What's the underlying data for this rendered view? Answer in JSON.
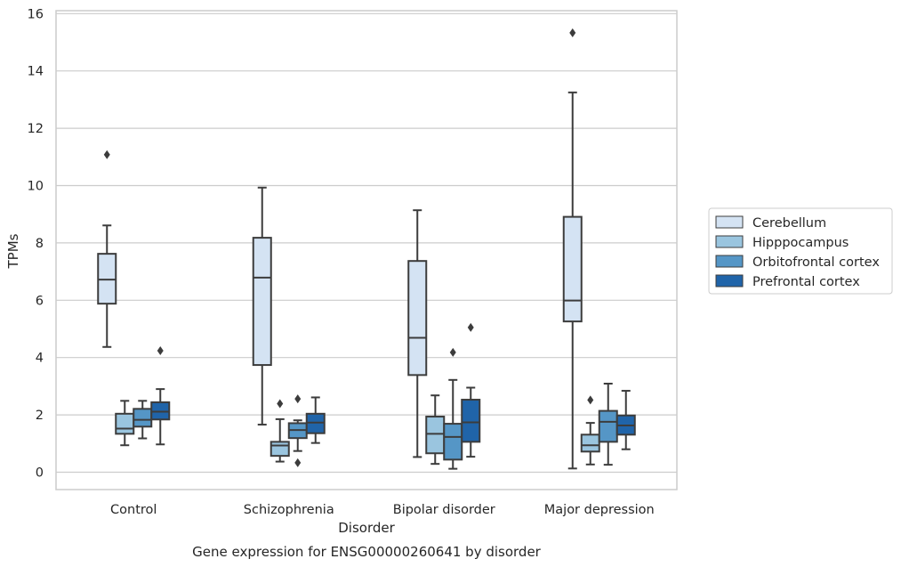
{
  "chart_data": {
    "type": "box",
    "title": "Gene expression for ENSG00000260641 by disorder",
    "xlabel": "Disorder",
    "ylabel": "TPMs",
    "ylim": [
      -0.6,
      16.1
    ],
    "yticks": [
      0,
      2,
      4,
      6,
      8,
      10,
      12,
      14,
      16
    ],
    "grid": "horizontal",
    "legend_position": "right",
    "categories": [
      "Control",
      "Schizophrenia",
      "Bipolar disorder",
      "Major depression"
    ],
    "series": [
      {
        "name": "Cerebellum",
        "color": "#d4e3f3",
        "boxes": [
          {
            "whislo": 4.37,
            "q1": 5.88,
            "med": 6.72,
            "q3": 7.62,
            "whishi": 8.61,
            "fliers": [
              11.08
            ]
          },
          {
            "whislo": 1.66,
            "q1": 3.74,
            "med": 6.79,
            "q3": 8.18,
            "whishi": 9.93,
            "fliers": []
          },
          {
            "whislo": 0.53,
            "q1": 3.39,
            "med": 4.69,
            "q3": 7.37,
            "whishi": 9.14,
            "fliers": []
          },
          {
            "whislo": 0.13,
            "q1": 5.26,
            "med": 5.99,
            "q3": 8.91,
            "whishi": 13.25,
            "fliers": [
              15.33
            ]
          }
        ]
      },
      {
        "name": "Hipppocampus",
        "color": "#9ac5df",
        "boxes": [
          {
            "whislo": 0.94,
            "q1": 1.34,
            "med": 1.52,
            "q3": 2.04,
            "whishi": 2.49,
            "fliers": []
          },
          {
            "whislo": 0.37,
            "q1": 0.57,
            "med": 0.93,
            "q3": 1.06,
            "whishi": 1.85,
            "fliers": [
              2.39
            ]
          },
          {
            "whislo": 0.29,
            "q1": 0.66,
            "med": 1.34,
            "q3": 1.94,
            "whishi": 2.68,
            "fliers": []
          },
          {
            "whislo": 0.27,
            "q1": 0.72,
            "med": 0.94,
            "q3": 1.31,
            "whishi": 1.72,
            "fliers": [
              2.52
            ]
          }
        ]
      },
      {
        "name": "Orbitofrontal cortex",
        "color": "#5596c6",
        "boxes": [
          {
            "whislo": 1.18,
            "q1": 1.59,
            "med": 1.83,
            "q3": 2.21,
            "whishi": 2.49,
            "fliers": []
          },
          {
            "whislo": 0.74,
            "q1": 1.19,
            "med": 1.47,
            "q3": 1.71,
            "whishi": 1.81,
            "fliers": [
              2.56,
              0.33
            ]
          },
          {
            "whislo": 0.12,
            "q1": 0.44,
            "med": 1.23,
            "q3": 1.69,
            "whishi": 3.22,
            "fliers": [
              4.18
            ]
          },
          {
            "whislo": 0.26,
            "q1": 1.06,
            "med": 1.76,
            "q3": 2.14,
            "whishi": 3.09,
            "fliers": []
          }
        ]
      },
      {
        "name": "Prefrontal cortex",
        "color": "#2064a9",
        "boxes": [
          {
            "whislo": 0.97,
            "q1": 1.84,
            "med": 2.11,
            "q3": 2.44,
            "whishi": 2.9,
            "fliers": [
              4.24
            ]
          },
          {
            "whislo": 1.02,
            "q1": 1.36,
            "med": 1.73,
            "q3": 2.04,
            "whishi": 2.61,
            "fliers": []
          },
          {
            "whislo": 0.54,
            "q1": 1.06,
            "med": 1.74,
            "q3": 2.53,
            "whishi": 2.95,
            "fliers": [
              5.05
            ]
          },
          {
            "whislo": 0.8,
            "q1": 1.31,
            "med": 1.63,
            "q3": 1.98,
            "whishi": 2.84,
            "fliers": []
          }
        ]
      }
    ]
  }
}
